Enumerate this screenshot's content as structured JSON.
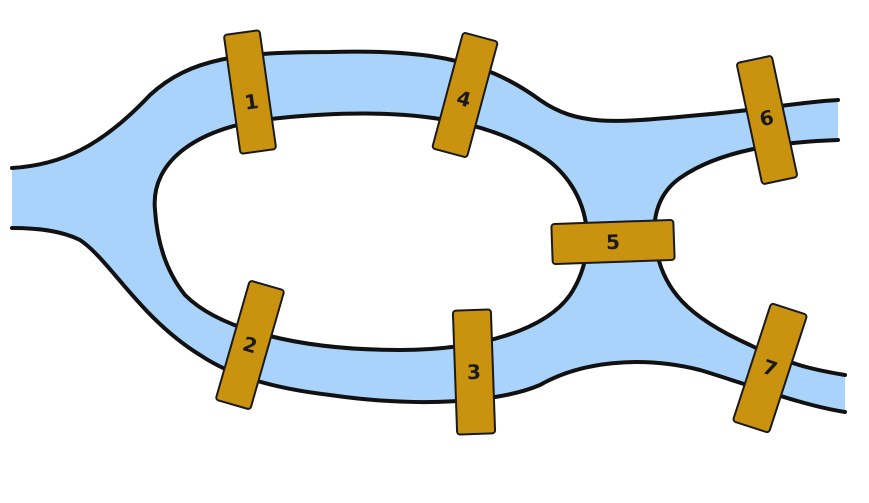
{
  "colors": {
    "water": "#a9d3fb",
    "shore_line": "#111111",
    "bridge_fill": "#c9920f",
    "bridge_edge": "#1a1a1a",
    "background": "#ffffff"
  },
  "bridges": [
    {
      "label": "1"
    },
    {
      "label": "2"
    },
    {
      "label": "3"
    },
    {
      "label": "4"
    },
    {
      "label": "5"
    },
    {
      "label": "6"
    },
    {
      "label": "7"
    }
  ]
}
